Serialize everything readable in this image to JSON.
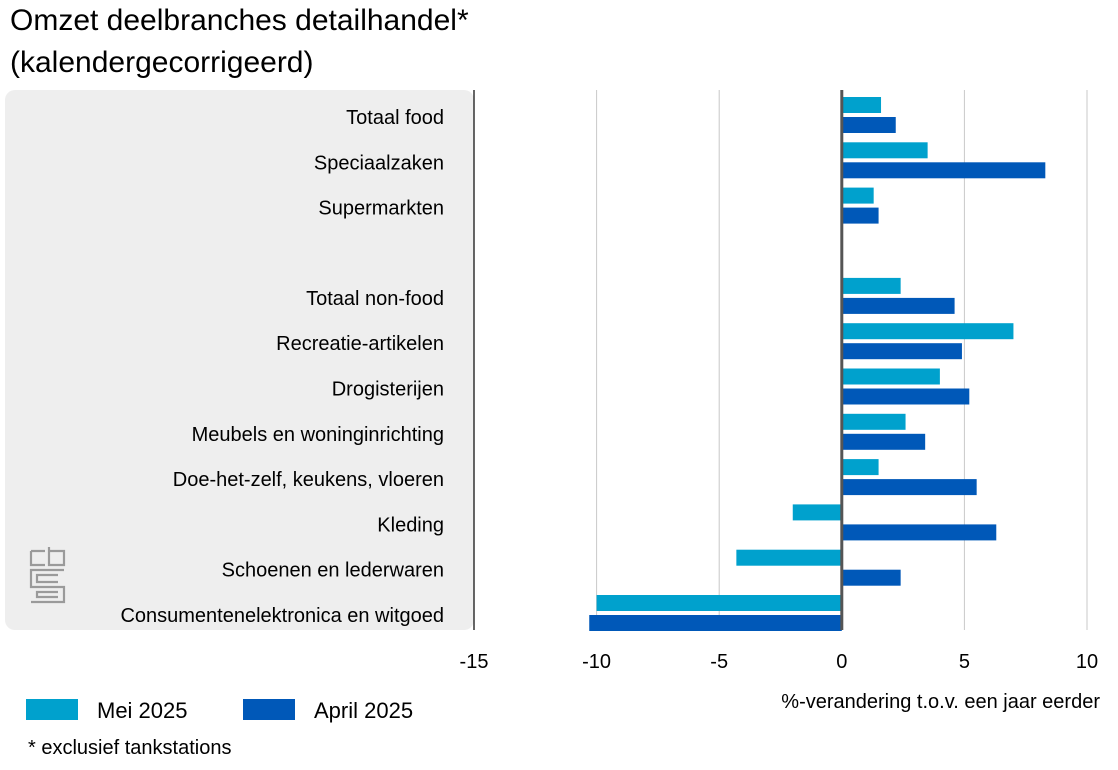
{
  "chart_data": {
    "type": "bar",
    "orientation": "horizontal",
    "title": [
      "Omzet deelbranches detailhandel*",
      "(kalendergecorrigeerd)"
    ],
    "xlabel": "%-verandering t.o.v. een jaar eerder",
    "xlim": [
      -15,
      10
    ],
    "xticks": [
      "-15",
      "-10",
      "-5",
      "0",
      "5",
      "10"
    ],
    "grid": true,
    "legend_position": "bottom-left",
    "footnote": "* exclusief tankstations",
    "logo_text": "cbs",
    "categories": [
      "Totaal food",
      "Speciaalzaken",
      "Supermarkten",
      "Totaal non-food",
      "Recreatie-artikelen",
      "Drogisterijen",
      "Meubels en woninginrichting",
      "Doe-het-zelf, keukens, vloeren",
      "Kleding",
      "Schoenen en lederwaren",
      "Consumentenelektronica en witgoed"
    ],
    "group_break_after": "Supermarkten",
    "series": [
      {
        "name": "Mei 2025",
        "color": "#00a1cd",
        "values": [
          1.6,
          3.5,
          1.3,
          2.4,
          7.0,
          4.0,
          2.6,
          1.5,
          -2.0,
          -4.3,
          -10.0
        ]
      },
      {
        "name": "April 2025",
        "color": "#0058b8",
        "values": [
          2.2,
          8.3,
          1.5,
          4.6,
          4.9,
          5.2,
          3.4,
          5.5,
          6.3,
          2.4,
          -10.3
        ]
      }
    ]
  }
}
